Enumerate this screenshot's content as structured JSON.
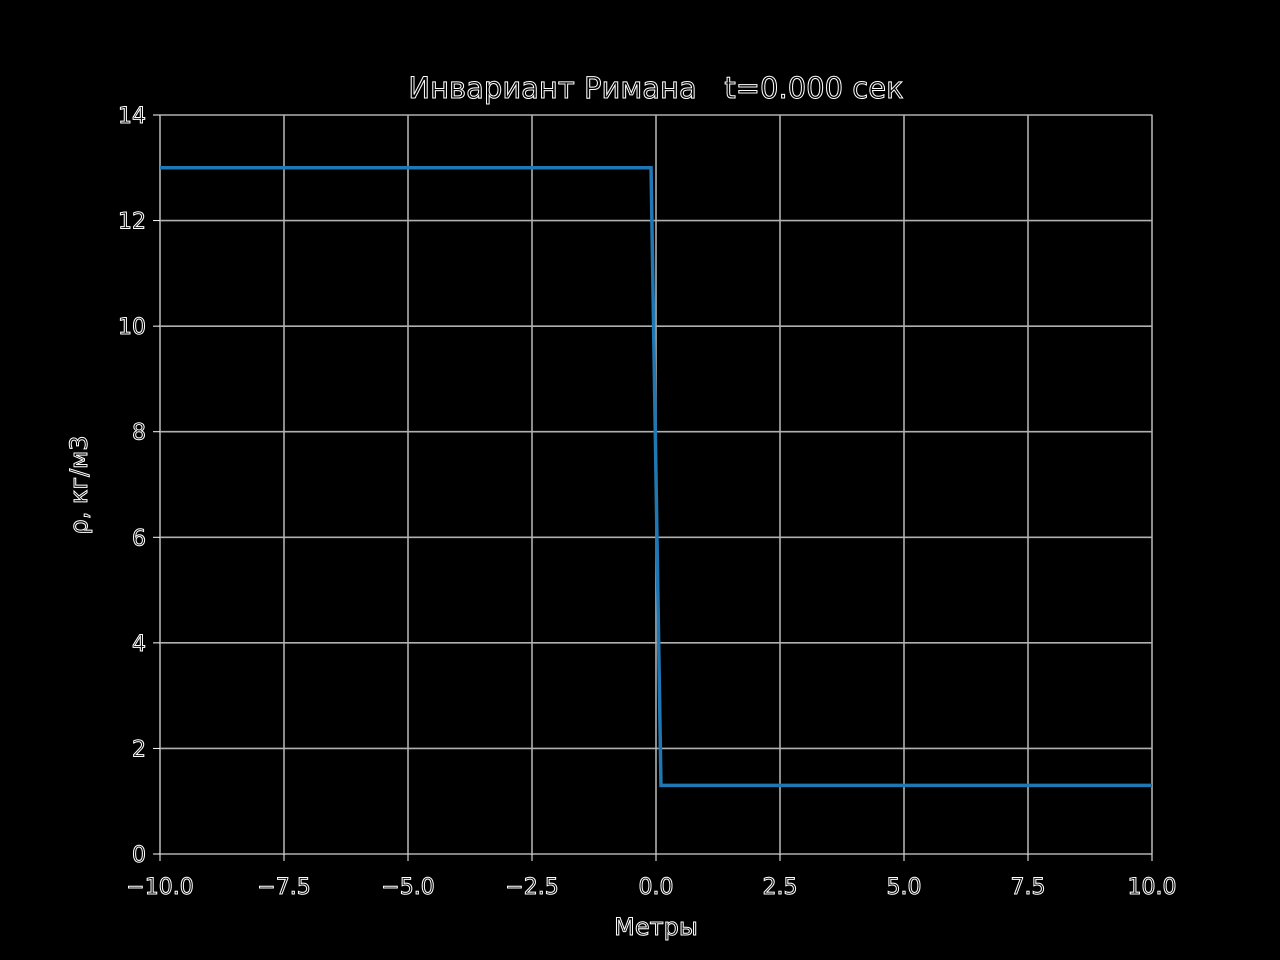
{
  "chart_data": {
    "type": "line",
    "title": "Инвариант Римана   t=0.000 сек",
    "xlabel": "Метры",
    "ylabel": "ρ, кг/м3",
    "xlim": [
      -10.0,
      10.0
    ],
    "ylim": [
      0,
      14
    ],
    "xticks": [
      "−10.0",
      "−7.5",
      "−5.0",
      "−2.5",
      "0.0",
      "2.5",
      "5.0",
      "7.5",
      "10.0"
    ],
    "xtick_values": [
      -10.0,
      -7.5,
      -5.0,
      -2.5,
      0.0,
      2.5,
      5.0,
      7.5,
      10.0
    ],
    "yticks": [
      "0",
      "2",
      "4",
      "6",
      "8",
      "10",
      "12",
      "14"
    ],
    "ytick_values": [
      0,
      2,
      4,
      6,
      8,
      10,
      12,
      14
    ],
    "grid": true,
    "series": [
      {
        "color": "#1f77b4",
        "x": [
          -10.0,
          -0.1,
          0.1,
          10.0
        ],
        "y": [
          13.0,
          13.0,
          1.3,
          1.3
        ]
      }
    ]
  }
}
